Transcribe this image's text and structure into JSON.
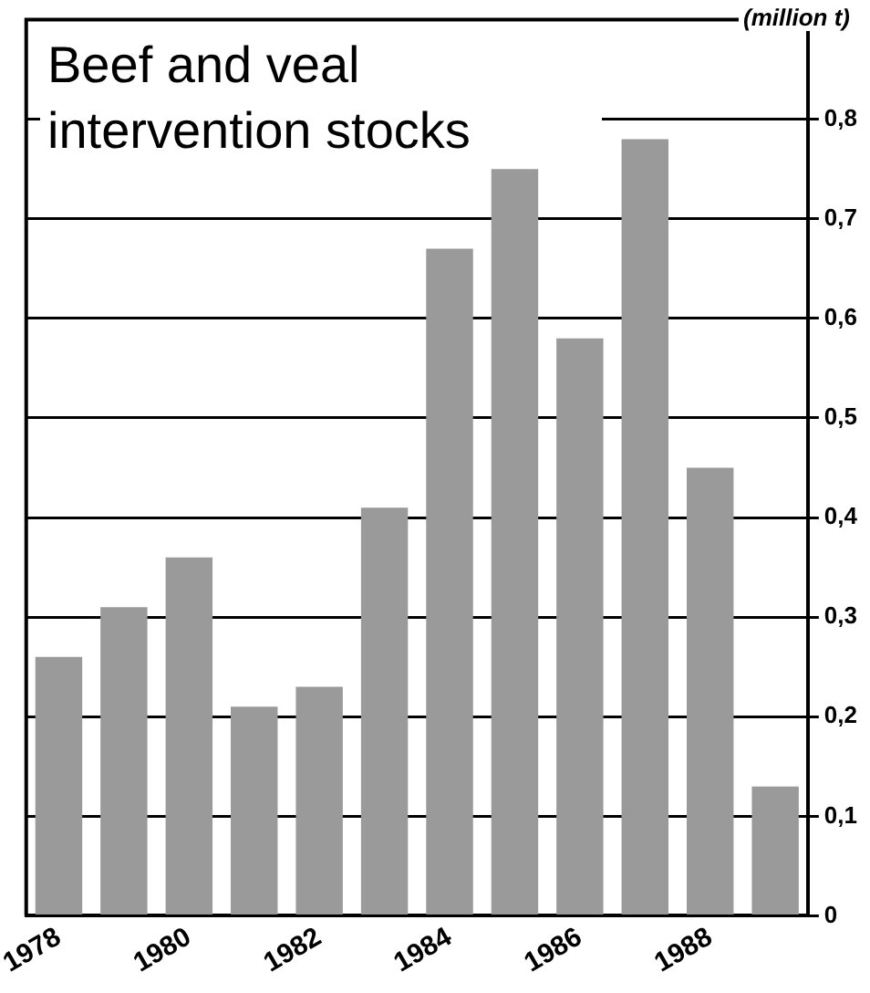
{
  "chart_data": {
    "type": "bar",
    "title": "Beef and veal intervention stocks",
    "ylabel": "(million t)",
    "categories": [
      "1978",
      null,
      "1980",
      null,
      "1982",
      null,
      "1984",
      null,
      "1986",
      null,
      "1988",
      null
    ],
    "values": [
      0.26,
      0.31,
      0.36,
      0.21,
      0.23,
      0.41,
      0.67,
      0.75,
      0.58,
      0.78,
      0.45,
      0.13
    ],
    "color": "#9a9a9a",
    "ylim": [
      0,
      0.9
    ],
    "yticks": [
      {
        "value": 0,
        "label": "0"
      },
      {
        "value": 0.1,
        "label": "0,1"
      },
      {
        "value": 0.2,
        "label": "0,2"
      },
      {
        "value": 0.3,
        "label": "0,3"
      },
      {
        "value": 0.4,
        "label": "0,4"
      },
      {
        "value": 0.5,
        "label": "0,5"
      },
      {
        "value": 0.6,
        "label": "0,6"
      },
      {
        "value": 0.7,
        "label": "0,7"
      },
      {
        "value": 0.8,
        "label": "0,8"
      }
    ],
    "grid": "y",
    "legend": false
  }
}
